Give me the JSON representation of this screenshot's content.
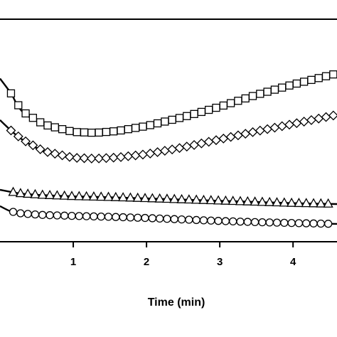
{
  "chart_data": {
    "type": "line",
    "title": "",
    "xlabel": "Time (min)",
    "ylabel": "",
    "xlim": [
      0,
      4.6
    ],
    "x_ticks": [
      "1",
      "2",
      "3",
      "4"
    ],
    "x_tick_values": [
      1,
      2,
      3,
      4
    ],
    "grid": false,
    "legend": "none",
    "line_color": "#000000",
    "series": [
      {
        "marker": "square",
        "x": [
          0,
          0.15,
          0.3,
          0.6,
          1.0,
          1.3,
          1.6,
          2.0,
          2.5,
          3.0,
          3.5,
          4.0,
          4.6
        ],
        "y": [
          0.55,
          0.5,
          0.44,
          0.395,
          0.37,
          0.367,
          0.373,
          0.39,
          0.42,
          0.455,
          0.495,
          0.53,
          0.567
        ]
      },
      {
        "marker": "diamond",
        "x": [
          0,
          0.15,
          0.3,
          0.6,
          1.0,
          1.3,
          1.6,
          2.0,
          2.5,
          3.0,
          3.5,
          4.0,
          4.6
        ],
        "y": [
          0.41,
          0.375,
          0.345,
          0.305,
          0.283,
          0.28,
          0.284,
          0.295,
          0.318,
          0.345,
          0.372,
          0.397,
          0.428
        ]
      },
      {
        "marker": "triangle",
        "x": [
          0,
          0.15,
          0.3,
          0.6,
          1.0,
          1.5,
          2.0,
          2.5,
          3.0,
          3.5,
          4.0,
          4.6
        ],
        "y": [
          0.175,
          0.168,
          0.162,
          0.157,
          0.153,
          0.15,
          0.146,
          0.142,
          0.138,
          0.134,
          0.13,
          0.127
        ]
      },
      {
        "marker": "circle",
        "x": [
          0,
          0.15,
          0.3,
          0.6,
          1.0,
          1.5,
          2.0,
          2.5,
          3.0,
          3.5,
          4.0,
          4.6
        ],
        "y": [
          0.12,
          0.102,
          0.095,
          0.09,
          0.087,
          0.084,
          0.08,
          0.075,
          0.07,
          0.066,
          0.063,
          0.06
        ]
      }
    ]
  }
}
